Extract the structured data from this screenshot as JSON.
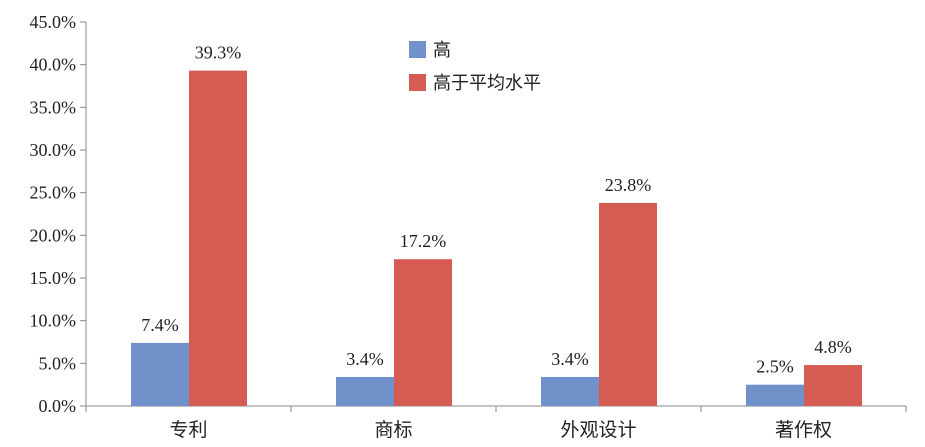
{
  "chart_data": {
    "type": "bar",
    "categories": [
      "专利",
      "商标",
      "外观设计",
      "著作权"
    ],
    "series": [
      {
        "name": "高",
        "values": [
          7.4,
          3.4,
          3.4,
          2.5
        ],
        "color": "#7191cb"
      },
      {
        "name": "高于平均水平",
        "values": [
          39.3,
          17.2,
          23.8,
          4.8
        ],
        "color": "#d45c52"
      }
    ],
    "data_labels": [
      [
        "7.4%",
        "3.4%",
        "3.4%",
        "2.5%"
      ],
      [
        "39.3%",
        "17.2%",
        "23.8%",
        "4.8%"
      ]
    ],
    "y_ticks": [
      "0.0%",
      "5.0%",
      "10.0%",
      "15.0%",
      "20.0%",
      "25.0%",
      "30.0%",
      "35.0%",
      "40.0%",
      "45.0%"
    ],
    "ylim": [
      0,
      45
    ],
    "y_step": 5,
    "grid": false,
    "legend_position": "top-center"
  }
}
